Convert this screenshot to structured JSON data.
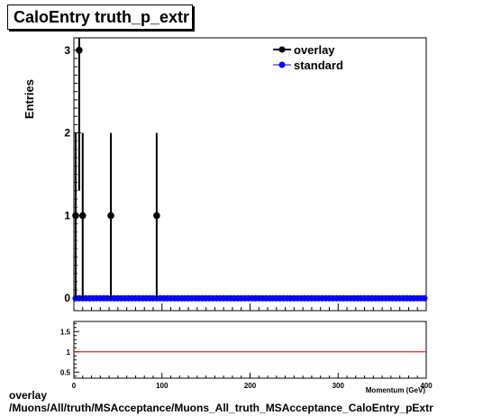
{
  "chart_data": [
    {
      "type": "scatter",
      "title": "CaloEntry truth_p_extr",
      "ylabel": "Entries",
      "xlim": [
        0,
        400
      ],
      "ylim": [
        -0.15,
        3.15
      ],
      "x_ticks": [
        0,
        100,
        200,
        300,
        400
      ],
      "y_ticks": [
        0,
        1,
        2,
        3
      ],
      "legend_position": "top-right",
      "series": [
        {
          "name": "overlay",
          "color": "#000000",
          "points": [
            {
              "x": 2,
              "y": 1,
              "ylo": 0,
              "yhi": 2
            },
            {
              "x": 6,
              "y": 3,
              "ylo": 1.3,
              "yhi": 4.7
            },
            {
              "x": 10,
              "y": 1,
              "ylo": 0,
              "yhi": 2
            },
            {
              "x": 42,
              "y": 1,
              "ylo": 0,
              "yhi": 2
            },
            {
              "x": 94,
              "y": 1,
              "ylo": 0,
              "yhi": 2
            }
          ]
        },
        {
          "name": "standard",
          "color": "#0000ff",
          "x_start": 2,
          "x_step": 4,
          "count": 100,
          "y": 0
        }
      ]
    },
    {
      "type": "line",
      "xlabel": "Momentum (GeV)",
      "xlim": [
        0,
        400
      ],
      "ylim": [
        0.35,
        1.75
      ],
      "x_ticks": [
        0,
        100,
        200,
        300,
        400
      ],
      "y_ticks": [
        0.5,
        1,
        1.5
      ],
      "reference_line": {
        "y": 1,
        "color": "#cc0000"
      }
    }
  ],
  "footer": {
    "line1": "overlay",
    "line2": "/Muons/All/truth/MSAcceptance/Muons_All_truth_MSAcceptance_CaloEntry_pExtr"
  }
}
